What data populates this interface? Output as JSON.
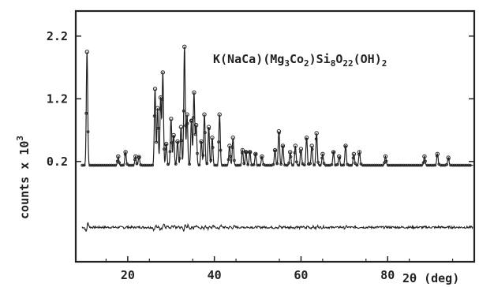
{
  "chart_data": {
    "type": "line",
    "title": "",
    "annotation": {
      "parts": [
        {
          "t": "K(NaCa)(Mg",
          "sub": false
        },
        {
          "t": "3",
          "sub": true
        },
        {
          "t": "Co",
          "sub": false
        },
        {
          "t": "2",
          "sub": true
        },
        {
          "t": ")Si",
          "sub": false
        },
        {
          "t": "8",
          "sub": true
        },
        {
          "t": "O",
          "sub": false
        },
        {
          "t": "22",
          "sub": true
        },
        {
          "t": "(OH)",
          "sub": false
        },
        {
          "t": "2",
          "sub": true
        }
      ]
    },
    "xlabel": "2θ (deg)",
    "ylabel": "counts x 10",
    "ylabel_exp": "3",
    "xlim": [
      8,
      100
    ],
    "ylim": [
      -1.4,
      2.6
    ],
    "xticks": [
      20,
      40,
      60,
      80
    ],
    "yticks": [
      0.2,
      1.2,
      2.2
    ],
    "ytick_labels": [
      "0.2",
      "1.2",
      "2.2"
    ],
    "grid": false,
    "baseline": 0.14,
    "peaks": [
      [
        10.6,
        1.95
      ],
      [
        17.8,
        0.28
      ],
      [
        19.5,
        0.35
      ],
      [
        21.8,
        0.28
      ],
      [
        22.6,
        0.27
      ],
      [
        26.3,
        1.36
      ],
      [
        26.9,
        1.05
      ],
      [
        27.6,
        1.22
      ],
      [
        28.1,
        1.62
      ],
      [
        28.9,
        0.48
      ],
      [
        30.0,
        0.88
      ],
      [
        30.6,
        0.62
      ],
      [
        31.5,
        0.52
      ],
      [
        32.3,
        0.75
      ],
      [
        33.1,
        2.03
      ],
      [
        33.7,
        0.95
      ],
      [
        34.7,
        0.85
      ],
      [
        35.3,
        1.3
      ],
      [
        35.8,
        0.78
      ],
      [
        37.0,
        0.52
      ],
      [
        37.7,
        0.95
      ],
      [
        38.7,
        0.75
      ],
      [
        39.5,
        0.58
      ],
      [
        41.2,
        0.95
      ],
      [
        43.5,
        0.45
      ],
      [
        44.3,
        0.58
      ],
      [
        46.5,
        0.38
      ],
      [
        47.3,
        0.35
      ],
      [
        48.2,
        0.35
      ],
      [
        49.5,
        0.32
      ],
      [
        51.0,
        0.28
      ],
      [
        54.0,
        0.38
      ],
      [
        54.9,
        0.68
      ],
      [
        55.8,
        0.45
      ],
      [
        57.5,
        0.35
      ],
      [
        58.7,
        0.45
      ],
      [
        60.0,
        0.4
      ],
      [
        61.3,
        0.58
      ],
      [
        62.5,
        0.45
      ],
      [
        63.6,
        0.65
      ],
      [
        65.0,
        0.32
      ],
      [
        67.5,
        0.35
      ],
      [
        68.8,
        0.28
      ],
      [
        70.3,
        0.45
      ],
      [
        72.2,
        0.32
      ],
      [
        73.5,
        0.35
      ],
      [
        79.5,
        0.28
      ],
      [
        88.5,
        0.28
      ],
      [
        91.5,
        0.32
      ],
      [
        94.0,
        0.26
      ]
    ],
    "diff_offset": -0.85
  }
}
